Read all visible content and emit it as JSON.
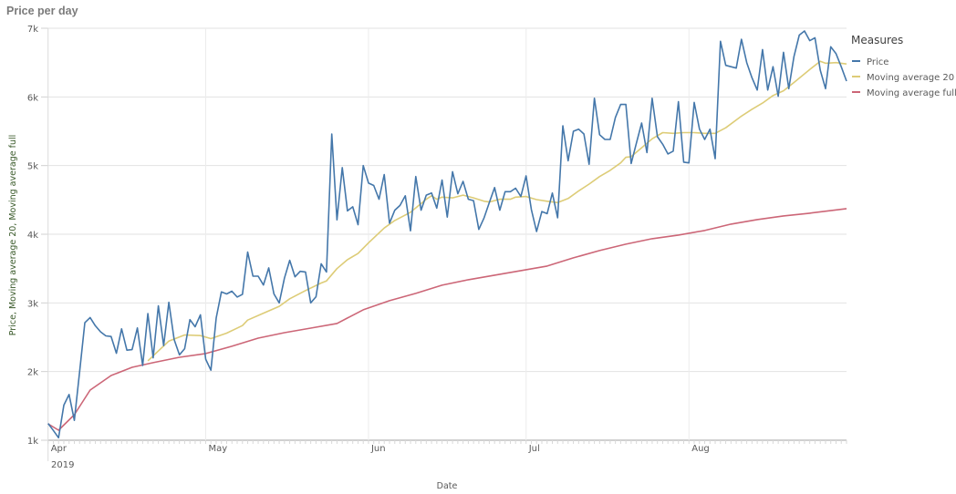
{
  "chart_data": {
    "type": "line",
    "title": "Price per day",
    "xlabel": "Date",
    "ylabel": "Price, Moving average 20, Moving average full",
    "ylim": [
      1000,
      7000
    ],
    "y_ticks": [
      {
        "v": 1000,
        "label": "1k"
      },
      {
        "v": 2000,
        "label": "2k"
      },
      {
        "v": 3000,
        "label": "3k"
      },
      {
        "v": 4000,
        "label": "4k"
      },
      {
        "v": 5000,
        "label": "5k"
      },
      {
        "v": 6000,
        "label": "6k"
      },
      {
        "v": 7000,
        "label": "7k"
      }
    ],
    "x_ticks": [
      {
        "date": "2019-04-01",
        "label": "Apr"
      },
      {
        "date": "2019-05-01",
        "label": "May"
      },
      {
        "date": "2019-06-01",
        "label": "Jun"
      },
      {
        "date": "2019-07-01",
        "label": "Jul"
      },
      {
        "date": "2019-08-01",
        "label": "Aug"
      }
    ],
    "x_year_label": "2019",
    "xlim": [
      "2019-04-01",
      "2019-08-31"
    ],
    "grid": true,
    "legend": {
      "title": "Measures",
      "placement": "right"
    },
    "series": [
      {
        "name": "Price",
        "color": "#4477aa",
        "x_range": [
          "2019-04-01",
          "2019-08-31"
        ],
        "values": [
          1244,
          1142,
          1036,
          1511,
          1667,
          1289,
          2000,
          2711,
          2787,
          2667,
          2578,
          2520,
          2511,
          2267,
          2622,
          2311,
          2320,
          2636,
          2089,
          2844,
          2200,
          2956,
          2378,
          3009,
          2467,
          2244,
          2333,
          2756,
          2653,
          2826,
          2180,
          2020,
          2780,
          3160,
          3130,
          3170,
          3085,
          3125,
          3740,
          3390,
          3390,
          3260,
          3510,
          3130,
          3000,
          3360,
          3620,
          3380,
          3460,
          3450,
          3000,
          3090,
          3570,
          3450,
          5460,
          4210,
          4970,
          4340,
          4400,
          4140,
          5000,
          4745,
          4710,
          4510,
          4870,
          4160,
          4350,
          4420,
          4560,
          4050,
          4840,
          4350,
          4570,
          4600,
          4380,
          4790,
          4250,
          4910,
          4590,
          4770,
          4510,
          4490,
          4070,
          4240,
          4460,
          4680,
          4350,
          4620,
          4620,
          4670,
          4550,
          4850,
          4360,
          4040,
          4330,
          4300,
          4600,
          4240,
          5580,
          5070,
          5500,
          5530,
          5460,
          5020,
          5980,
          5450,
          5380,
          5380,
          5700,
          5890,
          5890,
          5030,
          5330,
          5620,
          5190,
          5980,
          5420,
          5310,
          5170,
          5210,
          5930,
          5050,
          5040,
          5920,
          5530,
          5380,
          5530,
          5100,
          6810,
          6460,
          6440,
          6420,
          6840,
          6500,
          6280,
          6100,
          6690,
          6100,
          6440,
          6010,
          6650,
          6120,
          6590,
          6900,
          6960,
          6820,
          6860,
          6390,
          6120,
          6730,
          6630,
          6440,
          6230
        ]
      },
      {
        "name": "Moving average 20",
        "color": "#ddcc77",
        "points": [
          [
            "2019-04-20",
            2156
          ],
          [
            "2019-04-24",
            2444
          ],
          [
            "2019-04-27",
            2533
          ],
          [
            "2019-04-30",
            2524
          ],
          [
            "2019-05-02",
            2480
          ],
          [
            "2019-05-05",
            2560
          ],
          [
            "2019-05-08",
            2670
          ],
          [
            "2019-05-09",
            2750
          ],
          [
            "2019-05-12",
            2850
          ],
          [
            "2019-05-15",
            2950
          ],
          [
            "2019-05-17",
            3060
          ],
          [
            "2019-05-20",
            3180
          ],
          [
            "2019-05-23",
            3290
          ],
          [
            "2019-05-24",
            3320
          ],
          [
            "2019-05-26",
            3500
          ],
          [
            "2019-05-28",
            3630
          ],
          [
            "2019-05-30",
            3720
          ],
          [
            "2019-06-01",
            3875
          ],
          [
            "2019-06-04",
            4090
          ],
          [
            "2019-06-06",
            4200
          ],
          [
            "2019-06-09",
            4320
          ],
          [
            "2019-06-12",
            4510
          ],
          [
            "2019-06-13",
            4560
          ],
          [
            "2019-06-14",
            4510
          ],
          [
            "2019-06-15",
            4540
          ],
          [
            "2019-06-17",
            4530
          ],
          [
            "2019-06-19",
            4570
          ],
          [
            "2019-06-21",
            4530
          ],
          [
            "2019-06-23",
            4480
          ],
          [
            "2019-06-24",
            4470
          ],
          [
            "2019-06-26",
            4510
          ],
          [
            "2019-06-28",
            4510
          ],
          [
            "2019-06-29",
            4540
          ],
          [
            "2019-07-01",
            4550
          ],
          [
            "2019-07-03",
            4505
          ],
          [
            "2019-07-05",
            4480
          ],
          [
            "2019-07-07",
            4460
          ],
          [
            "2019-07-09",
            4520
          ],
          [
            "2019-07-11",
            4630
          ],
          [
            "2019-07-13",
            4730
          ],
          [
            "2019-07-15",
            4840
          ],
          [
            "2019-07-17",
            4930
          ],
          [
            "2019-07-19",
            5040
          ],
          [
            "2019-07-20",
            5120
          ],
          [
            "2019-07-21",
            5130
          ],
          [
            "2019-07-23",
            5260
          ],
          [
            "2019-07-25",
            5390
          ],
          [
            "2019-07-27",
            5480
          ],
          [
            "2019-07-29",
            5470
          ],
          [
            "2019-07-31",
            5480
          ],
          [
            "2019-08-02",
            5480
          ],
          [
            "2019-08-04",
            5470
          ],
          [
            "2019-08-06",
            5470
          ],
          [
            "2019-08-08",
            5550
          ],
          [
            "2019-08-11",
            5720
          ],
          [
            "2019-08-13",
            5820
          ],
          [
            "2019-08-15",
            5910
          ],
          [
            "2019-08-17",
            6020
          ],
          [
            "2019-08-19",
            6090
          ],
          [
            "2019-08-21",
            6210
          ],
          [
            "2019-08-24",
            6400
          ],
          [
            "2019-08-26",
            6520
          ],
          [
            "2019-08-27",
            6490
          ],
          [
            "2019-08-29",
            6500
          ],
          [
            "2019-08-31",
            6480
          ]
        ]
      },
      {
        "name": "Moving average full",
        "color": "#cc6677",
        "points": [
          [
            "2019-04-01",
            1239
          ],
          [
            "2019-04-03",
            1146
          ],
          [
            "2019-04-06",
            1372
          ],
          [
            "2019-04-09",
            1730
          ],
          [
            "2019-04-13",
            1943
          ],
          [
            "2019-04-17",
            2062
          ],
          [
            "2019-04-21",
            2129
          ],
          [
            "2019-04-26",
            2208
          ],
          [
            "2019-05-01",
            2262
          ],
          [
            "2019-05-06",
            2368
          ],
          [
            "2019-05-11",
            2487
          ],
          [
            "2019-05-16",
            2567
          ],
          [
            "2019-05-21",
            2633
          ],
          [
            "2019-05-26",
            2700
          ],
          [
            "2019-05-31",
            2899
          ],
          [
            "2019-06-05",
            3032
          ],
          [
            "2019-06-10",
            3138
          ],
          [
            "2019-06-15",
            3258
          ],
          [
            "2019-06-20",
            3337
          ],
          [
            "2019-06-25",
            3404
          ],
          [
            "2019-06-30",
            3470
          ],
          [
            "2019-07-05",
            3537
          ],
          [
            "2019-07-10",
            3656
          ],
          [
            "2019-07-15",
            3762
          ],
          [
            "2019-07-20",
            3855
          ],
          [
            "2019-07-25",
            3935
          ],
          [
            "2019-07-30",
            3988
          ],
          [
            "2019-08-04",
            4054
          ],
          [
            "2019-08-09",
            4147
          ],
          [
            "2019-08-14",
            4214
          ],
          [
            "2019-08-19",
            4267
          ],
          [
            "2019-08-24",
            4307
          ],
          [
            "2019-08-31",
            4373
          ]
        ]
      }
    ]
  }
}
